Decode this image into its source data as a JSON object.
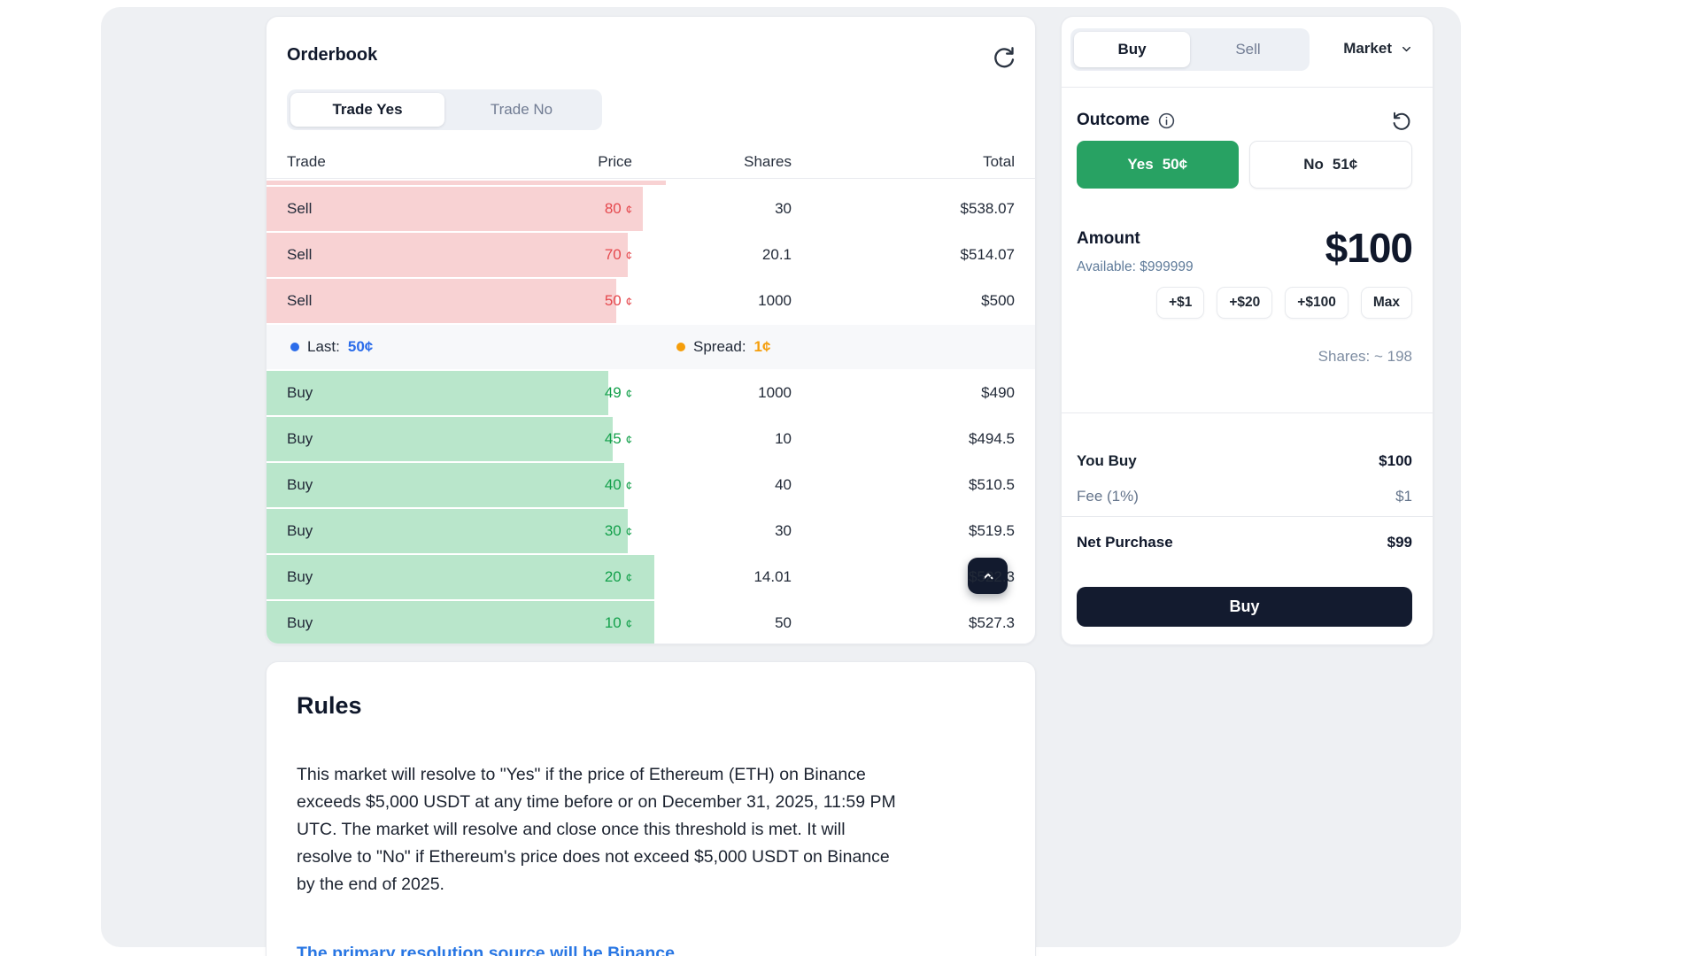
{
  "orderbook": {
    "title": "Orderbook",
    "tabs": [
      {
        "label": "Trade Yes"
      },
      {
        "label": "Trade No"
      }
    ],
    "columns": {
      "trade": "Trade",
      "price": "Price",
      "shares": "Shares",
      "total": "Total"
    },
    "clipped_bar_pct": 52,
    "asks": [
      {
        "side": "Sell",
        "price": "80",
        "unit": "¢",
        "shares": "30",
        "total": "$538.07",
        "bar_pct": 49
      },
      {
        "side": "Sell",
        "price": "70",
        "unit": "¢",
        "shares": "20.1",
        "total": "$514.07",
        "bar_pct": 47
      },
      {
        "side": "Sell",
        "price": "50",
        "unit": "¢",
        "shares": "1000",
        "total": "$500",
        "bar_pct": 45.5
      }
    ],
    "last": {
      "label": "Last:",
      "value": "50¢"
    },
    "spread": {
      "label": "Spread:",
      "value": "1¢"
    },
    "bids": [
      {
        "side": "Buy",
        "price": "49",
        "unit": "¢",
        "shares": "1000",
        "total": "$490",
        "bar_pct": 44.5
      },
      {
        "side": "Buy",
        "price": "45",
        "unit": "¢",
        "shares": "10",
        "total": "$494.5",
        "bar_pct": 45
      },
      {
        "side": "Buy",
        "price": "40",
        "unit": "¢",
        "shares": "40",
        "total": "$510.5",
        "bar_pct": 46.5
      },
      {
        "side": "Buy",
        "price": "30",
        "unit": "¢",
        "shares": "30",
        "total": "$519.5",
        "bar_pct": 47
      },
      {
        "side": "Buy",
        "price": "20",
        "unit": "¢",
        "shares": "14.01",
        "total": "$522.3",
        "bar_pct": 50.5
      },
      {
        "side": "Buy",
        "price": "10",
        "unit": "¢",
        "shares": "50",
        "total": "$527.3",
        "bar_pct": 50.5
      }
    ]
  },
  "trade_panel": {
    "tabs": [
      {
        "label": "Buy"
      },
      {
        "label": "Sell"
      }
    ],
    "order_type": "Market",
    "outcome_label": "Outcome",
    "yes_button": {
      "label": "Yes",
      "price": "50¢"
    },
    "no_button": {
      "label": "No",
      "price": "51¢"
    },
    "amount": {
      "label": "Amount",
      "available": "Available: $999999",
      "value": "$100"
    },
    "quick_amounts": [
      "+$1",
      "+$20",
      "+$100",
      "Max"
    ],
    "shares_estimate": "Shares: ~ 198",
    "summary": {
      "you_buy_label": "You Buy",
      "you_buy_value": "$100",
      "fee_label": "Fee (1%)",
      "fee_value": "$1",
      "net_label": "Net Purchase",
      "net_value": "$99"
    },
    "submit_label": "Buy"
  },
  "rules": {
    "title": "Rules",
    "body_lines": [
      "This market will resolve to \"Yes\" if the price of Ethereum (ETH) on Binance",
      "exceeds $5,000 USDT at any time before or on December 31, 2025, 11:59 PM",
      "UTC. The market will resolve and close once this threshold is met. It will",
      "resolve to \"No\" if Ethereum's price does not exceed $5,000 USDT on Binance",
      "by the end of 2025."
    ],
    "link": "The primary resolution source will be Binance"
  },
  "colors": {
    "ask_text": "#e5494e",
    "ask_bar": "#f8d2d3",
    "bid_text": "#13a04b",
    "bid_bar": "#b9e6cb",
    "last_blue": "#2b6cea",
    "spread_orange": "#f59e0b",
    "yes_green": "#28a263",
    "dark_navy": "#131b2f",
    "slate": "#5f7b9a",
    "link_blue": "#2876e3",
    "content_bg": "#eef0f3"
  }
}
